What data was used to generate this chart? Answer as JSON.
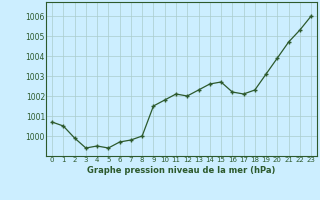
{
  "x": [
    0,
    1,
    2,
    3,
    4,
    5,
    6,
    7,
    8,
    9,
    10,
    11,
    12,
    13,
    14,
    15,
    16,
    17,
    18,
    19,
    20,
    21,
    22,
    23
  ],
  "y": [
    1000.7,
    1000.5,
    999.9,
    999.4,
    999.5,
    999.4,
    999.7,
    999.8,
    1000.0,
    1001.5,
    1001.8,
    1002.1,
    1002.0,
    1002.3,
    1002.6,
    1002.7,
    1002.2,
    1002.1,
    1002.3,
    1003.1,
    1003.9,
    1004.7,
    1005.3,
    1006.0
  ],
  "ylim": [
    999.0,
    1006.7
  ],
  "yticks": [
    1000,
    1001,
    1002,
    1003,
    1004,
    1005,
    1006
  ],
  "xticks": [
    0,
    1,
    2,
    3,
    4,
    5,
    6,
    7,
    8,
    9,
    10,
    11,
    12,
    13,
    14,
    15,
    16,
    17,
    18,
    19,
    20,
    21,
    22,
    23
  ],
  "line_color": "#2d5a2d",
  "marker_color": "#2d5a2d",
  "bg_color": "#cceeff",
  "grid_color": "#aacccc",
  "xlabel": "Graphe pression niveau de la mer (hPa)",
  "xlabel_color": "#2d5a2d",
  "tick_color": "#2d5a2d",
  "spine_color": "#2d5a2d"
}
